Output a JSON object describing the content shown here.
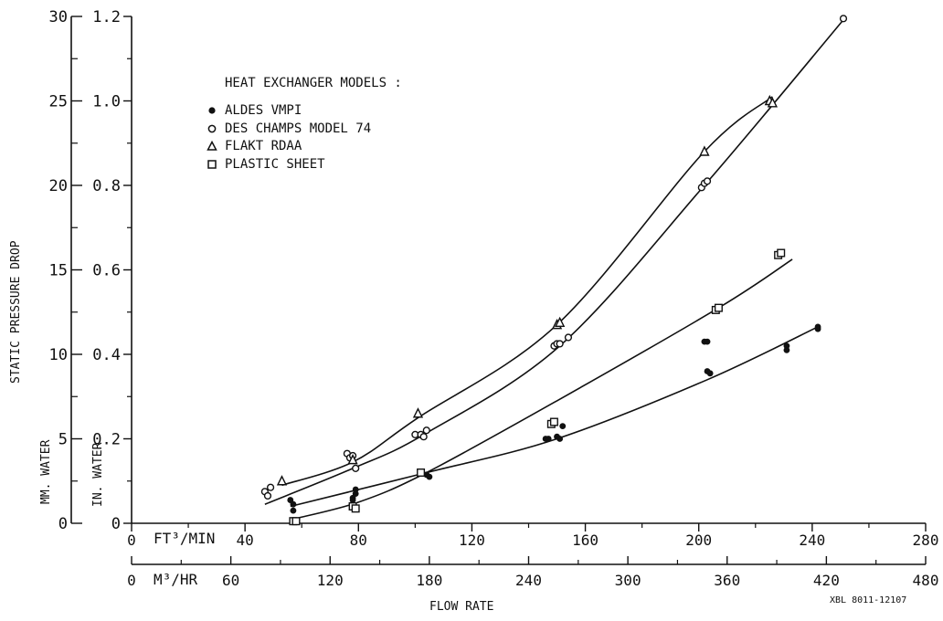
{
  "chart_data": {
    "type": "scatter",
    "title": "",
    "ylabel_outer": "STATIC PRESSURE DROP",
    "ylabel_mm": "MM. WATER",
    "ylabel_in": "IN. WATER",
    "xlabel": "FLOW RATE",
    "x_axis_cfm": {
      "unit_label": "FT³/MIN",
      "range": [
        0,
        280
      ],
      "ticks": [
        "0",
        "40",
        "80",
        "120",
        "160",
        "200",
        "240",
        "280"
      ]
    },
    "x_axis_m3hr": {
      "unit_label": "M³/HR",
      "range": [
        0,
        480
      ],
      "ticks": [
        "0",
        "60",
        "120",
        "180",
        "240",
        "300",
        "360",
        "420",
        "480"
      ]
    },
    "y_axis_mm": {
      "range": [
        0,
        30
      ],
      "ticks": [
        "0",
        "5",
        "10",
        "15",
        "20",
        "25",
        "30"
      ]
    },
    "y_axis_in": {
      "range": [
        0,
        1.2
      ],
      "ticks": [
        "0",
        "0.2",
        "0.4",
        "0.6",
        "0.8",
        "1.0",
        "1.2"
      ]
    },
    "legend": {
      "title": "HEAT EXCHANGER MODELS :",
      "position": "top-left",
      "entries": [
        {
          "marker": "filled-circle",
          "label": "ALDES VMPI"
        },
        {
          "marker": "open-circle",
          "label": "DES CHAMPS MODEL 74"
        },
        {
          "marker": "triangle",
          "label": "FLAKT RDAA"
        },
        {
          "marker": "square",
          "label": "PLASTIC SHEET"
        }
      ]
    },
    "series": [
      {
        "name": "ALDES VMPI",
        "marker": "filled-circle",
        "x": [
          56,
          57,
          57,
          78,
          78,
          79,
          79,
          104,
          105,
          146,
          147,
          150,
          151,
          152,
          202,
          203,
          203,
          204,
          231,
          231,
          242,
          242
        ],
        "y": [
          0.055,
          0.045,
          0.03,
          0.06,
          0.055,
          0.08,
          0.07,
          0.115,
          0.11,
          0.2,
          0.2,
          0.205,
          0.2,
          0.23,
          0.43,
          0.43,
          0.36,
          0.355,
          0.42,
          0.41,
          0.465,
          0.46
        ],
        "fit": {
          "x": [
            56,
            104,
            150,
            203,
            242
          ],
          "y": [
            0.04,
            0.12,
            0.2,
            0.34,
            0.465
          ]
        }
      },
      {
        "name": "DES CHAMPS MODEL 74",
        "marker": "open-circle",
        "x": [
          47,
          48,
          49,
          76,
          77,
          78,
          79,
          100,
          102,
          103,
          104,
          149,
          150,
          151,
          154,
          201,
          202,
          203,
          251
        ],
        "y": [
          0.075,
          0.065,
          0.085,
          0.165,
          0.155,
          0.16,
          0.13,
          0.21,
          0.21,
          0.205,
          0.22,
          0.42,
          0.425,
          0.425,
          0.44,
          0.795,
          0.805,
          0.81,
          1.195
        ],
        "fit": {
          "x": [
            47,
            78,
            103,
            151,
            202,
            252
          ],
          "y": [
            0.045,
            0.13,
            0.21,
            0.42,
            0.8,
            1.2
          ]
        }
      },
      {
        "name": "FLAKT RDAA",
        "marker": "triangle",
        "x": [
          53,
          78,
          101,
          150,
          151,
          202,
          225,
          226
        ],
        "y": [
          0.1,
          0.15,
          0.26,
          0.47,
          0.475,
          0.88,
          1.0,
          0.995
        ],
        "fit": {
          "x": [
            53,
            78,
            101,
            150,
            202,
            226
          ],
          "y": [
            0.09,
            0.145,
            0.25,
            0.47,
            0.88,
            1.01
          ]
        }
      },
      {
        "name": "PLASTIC SHEET",
        "marker": "square",
        "x": [
          57,
          58,
          78,
          79,
          102,
          148,
          149,
          206,
          207,
          228,
          229
        ],
        "y": [
          0.005,
          0.005,
          0.04,
          0.035,
          0.12,
          0.235,
          0.24,
          0.505,
          0.51,
          0.635,
          0.64
        ],
        "fit": {
          "x": [
            57,
            80,
            104,
            150,
            207,
            233
          ],
          "y": [
            0.01,
            0.05,
            0.12,
            0.29,
            0.51,
            0.625
          ]
        }
      }
    ],
    "grid": false,
    "annotation": "XBL 8011-12107"
  }
}
